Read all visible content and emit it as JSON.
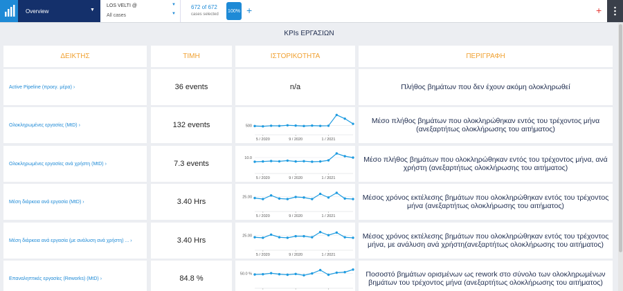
{
  "topbar": {
    "view": "Overview",
    "dataset": "LOS VELTI @",
    "filter": "All cases",
    "cases_count": "672 of 672",
    "cases_label": "cases selected",
    "percent": "100%"
  },
  "page_title": "KPIs ΕΡΓΑΣΙΩΝ",
  "table": {
    "headers": [
      "ΔΕΙΚΤΗΣ",
      "ΤΙΜΗ",
      "ΙΣΤΟΡΙΚΟΤΗΤΑ",
      "ΠΕΡΙΓΡΑΦΗ"
    ],
    "history_categories": [
      null,
      "5 / 2020",
      null,
      null,
      null,
      "9 / 2020",
      null,
      null,
      null,
      "1 / 2021",
      null,
      null,
      null
    ],
    "rows": [
      {
        "kpi": "Active Pipeline (προεγ. μέρα)",
        "value": "36 events",
        "history": "n/a",
        "description": "Πλήθος βημάτων που δεν έχουν ακόμη ολοκληρωθεί"
      },
      {
        "kpi": "Ολοκληρωμένες εργασίες (MtD)",
        "value": "132 events",
        "history": {
          "type": "line",
          "ylim": [
            0,
            1400
          ],
          "yticks": [
            500
          ],
          "values": [
            450,
            430,
            470,
            460,
            500,
            480,
            450,
            480,
            460,
            470,
            1200,
            950,
            600
          ]
        },
        "description": "Μέσο πλήθος βημάτων που ολοκληρώθηκαν εντός του τρέχοντος μήνα (ανεξαρτήτως ολοκλήρωσης του αιτήματος)"
      },
      {
        "kpi": "Ολοκληρωμένες εργασίες ανά χρήστη (MtD)",
        "value": "7.3 events",
        "history": {
          "type": "line",
          "ylim": [
            0,
            15
          ],
          "yticks": [
            {
              "value": 10,
              "label": "10.0"
            }
          ],
          "values": [
            7,
            7.2,
            7.5,
            7.3,
            7.8,
            7.2,
            7.4,
            7,
            7.2,
            8,
            13,
            11,
            10
          ]
        },
        "description": "Μέσο πλήθος βημάτων που ολοκληρώθηκαν εντός του τρέχοντος μήνα, ανά χρήστη (ανεξαρτήτως ολοκλήρωσης του αιτήματος)"
      },
      {
        "kpi": "Μέση διάρκεια ανά εργασία (MtD)",
        "value": "3.40 Hrs",
        "history": {
          "type": "line",
          "ylim": [
            0,
            40
          ],
          "yticks": [
            {
              "value": 25,
              "label": "25.00"
            }
          ],
          "values": [
            22,
            20,
            27,
            21,
            20,
            24,
            23,
            20,
            30,
            23,
            32,
            21,
            20
          ]
        },
        "description": "Μέσος χρόνος εκτέλεσης βημάτων που ολοκληρώθηκαν εντός του τρέχοντος μήνα (ανεξαρτήτως ολοκλήρωσης του αιτήματος)"
      },
      {
        "kpi": "Μέση διάρκεια ανά εργασία (με ανάλυση ανά χρήστη) ...",
        "value": "3.40 Hrs",
        "history": {
          "type": "line",
          "ylim": [
            0,
            40
          ],
          "yticks": [
            {
              "value": 25,
              "label": "25.00"
            }
          ],
          "values": [
            21,
            20,
            26,
            21,
            20,
            23,
            23,
            21,
            31,
            25,
            30,
            21,
            20
          ]
        },
        "description": "Μέσος χρόνος εκτέλεσης βημάτων που ολοκληρώθηκαν εντός του τρέχοντος μήνα, με ανάλυση ανά χρήστη(ανεξαρτήτως ολοκλήρωσης του αιτήματος)"
      },
      {
        "kpi": "Επαναληπτικές εργασίες (Reworks) (MtD)",
        "value": "84.8 %",
        "history": {
          "type": "line",
          "ylim": [
            0,
            80
          ],
          "yticks": [
            {
              "value": 50,
              "label": "50.0 %"
            }
          ],
          "values": [
            45,
            46,
            50,
            46,
            44,
            47,
            42,
            49,
            62,
            44,
            52,
            54,
            64
          ]
        },
        "description": "Ποσοστό βημάτων ορισμένων ως rework στο σύνολο των ολοκληρωμένων βημάτων του τρέχοντος μήνα (ανεξαρτήτως ολοκλήρωσης του αιτήματος)"
      }
    ]
  }
}
